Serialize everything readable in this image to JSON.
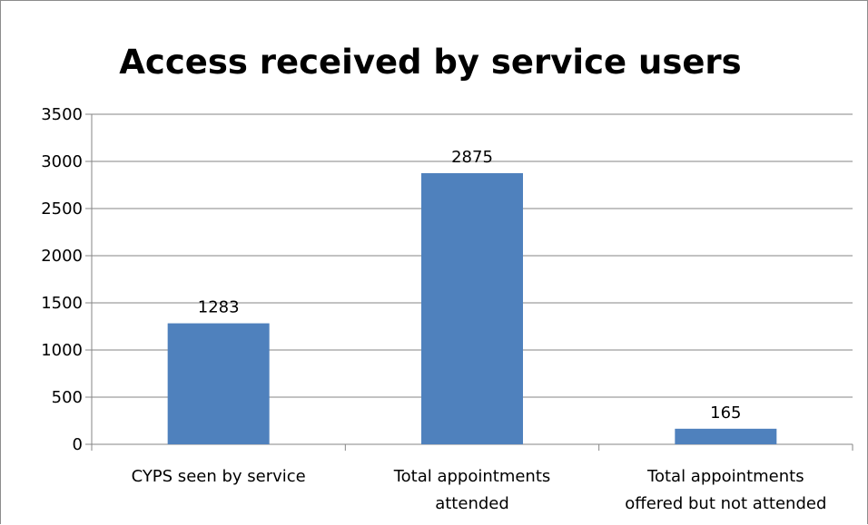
{
  "chart_data": {
    "type": "bar",
    "title": "Access received by service users",
    "categories": [
      [
        "CYPS seen by service"
      ],
      [
        "Total appointments",
        "attended"
      ],
      [
        "Total appointments",
        "offered but not attended"
      ]
    ],
    "values": [
      1283,
      2875,
      165
    ],
    "data_labels": [
      "1283",
      "2875",
      "165"
    ],
    "ylim": [
      0,
      3500
    ],
    "yticks": [
      0,
      500,
      1000,
      1500,
      2000,
      2500,
      3000,
      3500
    ],
    "grid": true,
    "legend": "none",
    "bar_color": "#4f81bd",
    "gridline_color": "#868686"
  }
}
